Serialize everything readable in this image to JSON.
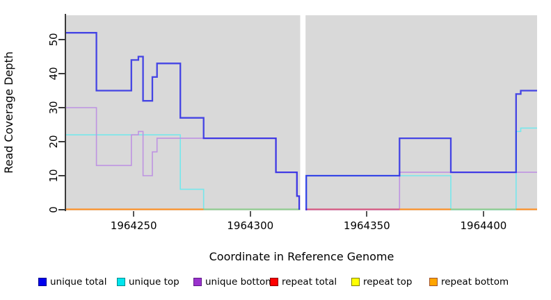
{
  "figure": {
    "background": "#FFFFFF",
    "panel_background": "#D9D9D9",
    "axis_color": "#3a3a3a"
  },
  "chart_data": {
    "type": "line",
    "subtype": "step",
    "title": "",
    "xlabel": "Coordinate in Reference Genome",
    "ylabel": "Read Coverage Depth",
    "xlim": [
      1964221,
      1964423
    ],
    "ylim": [
      0,
      57
    ],
    "grid": false,
    "x_ticks": [
      1964250,
      1964300,
      1964350,
      1964400
    ],
    "y_ticks": [
      0,
      10,
      20,
      30,
      40,
      50
    ],
    "gap_region": {
      "from": 1964321.4,
      "to": 1964323.7,
      "color": "#FFFFFF"
    },
    "legend_position": "bottom",
    "series": [
      {
        "name": "unique top",
        "color": "#76E7EC",
        "legend_fill": "#00E5EE",
        "legend_border": "#008B8B",
        "width": 1.6,
        "opacity": 1,
        "points": [
          [
            1964221,
            22
          ],
          [
            1964270,
            6
          ],
          [
            1964280,
            0
          ],
          [
            1964321.4,
            null
          ],
          [
            1964323.7,
            0
          ],
          [
            1964324,
            10
          ],
          [
            1964386,
            0
          ],
          [
            1964414,
            23
          ],
          [
            1964416,
            24
          ],
          [
            1964423,
            24
          ]
        ]
      },
      {
        "name": "unique bottom",
        "color": "#BE93E2",
        "legend_fill": "#9A32CD",
        "legend_border": "#5E1B86",
        "width": 1.6,
        "opacity": 1,
        "points": [
          [
            1964221,
            30
          ],
          [
            1964234,
            13
          ],
          [
            1964249,
            22
          ],
          [
            1964252,
            23
          ],
          [
            1964254,
            10
          ],
          [
            1964258,
            17
          ],
          [
            1964260,
            21
          ],
          [
            1964311,
            11
          ],
          [
            1964320,
            4
          ],
          [
            1964321,
            0
          ],
          [
            1964321.4,
            null
          ],
          [
            1964323.7,
            0
          ],
          [
            1964364,
            11
          ],
          [
            1964423,
            11
          ]
        ]
      },
      {
        "name": "unique total",
        "color": "#1E1EE6",
        "legend_fill": "#0000EE",
        "legend_border": "#00008B",
        "width": 2.3,
        "opacity": 0.8,
        "points": [
          [
            1964221,
            52
          ],
          [
            1964234,
            35
          ],
          [
            1964249,
            44
          ],
          [
            1964252,
            45
          ],
          [
            1964254,
            32
          ],
          [
            1964258,
            39
          ],
          [
            1964260,
            43
          ],
          [
            1964270,
            27
          ],
          [
            1964280,
            21
          ],
          [
            1964311,
            11
          ],
          [
            1964320,
            4
          ],
          [
            1964321,
            0
          ],
          [
            1964321.4,
            null
          ],
          [
            1964323.7,
            0
          ],
          [
            1964324,
            10
          ],
          [
            1964364,
            21
          ],
          [
            1964386,
            11
          ],
          [
            1964414,
            34
          ],
          [
            1964416,
            35
          ],
          [
            1964423,
            35
          ]
        ]
      },
      {
        "name": "repeat total",
        "color": "#D9587F",
        "legend_fill": "#FF0000",
        "legend_border": "#8B0000",
        "width": 0,
        "opacity": 1,
        "points": [
          [
            1964221,
            0
          ],
          [
            1964321.4,
            null
          ],
          [
            1964323.7,
            0
          ],
          [
            1964423,
            0
          ]
        ]
      },
      {
        "name": "repeat top",
        "color": "#EEee44",
        "legend_fill": "#FFFF00",
        "legend_border": "#808000",
        "width": 0,
        "opacity": 1,
        "points": [
          [
            1964221,
            0
          ],
          [
            1964321.4,
            null
          ],
          [
            1964323.7,
            0
          ],
          [
            1964423,
            0
          ]
        ]
      },
      {
        "name": "repeat bottom",
        "color": "#FF9023",
        "legend_fill": "#FFA500",
        "legend_border": "#A0522D",
        "width": 0,
        "opacity": 1,
        "points": [
          [
            1964221,
            0
          ],
          [
            1964321.4,
            null
          ],
          [
            1964323.7,
            0
          ],
          [
            1964423,
            0
          ]
        ]
      }
    ],
    "baseline_segments": [
      {
        "from": 1964221,
        "to": 1964280,
        "color": "#FF9023"
      },
      {
        "from": 1964280,
        "to": 1964321.4,
        "color": "#8FCD8F"
      },
      {
        "from": 1964323.7,
        "to": 1964364,
        "color": "#D9587F"
      },
      {
        "from": 1964364,
        "to": 1964386,
        "color": "#FF9023"
      },
      {
        "from": 1964386,
        "to": 1964414,
        "color": "#8FCD8F"
      },
      {
        "from": 1964414,
        "to": 1964423,
        "color": "#FF9023"
      }
    ],
    "legend_order": [
      "unique total",
      "unique top",
      "unique bottom",
      "repeat total",
      "repeat top",
      "repeat bottom"
    ]
  }
}
